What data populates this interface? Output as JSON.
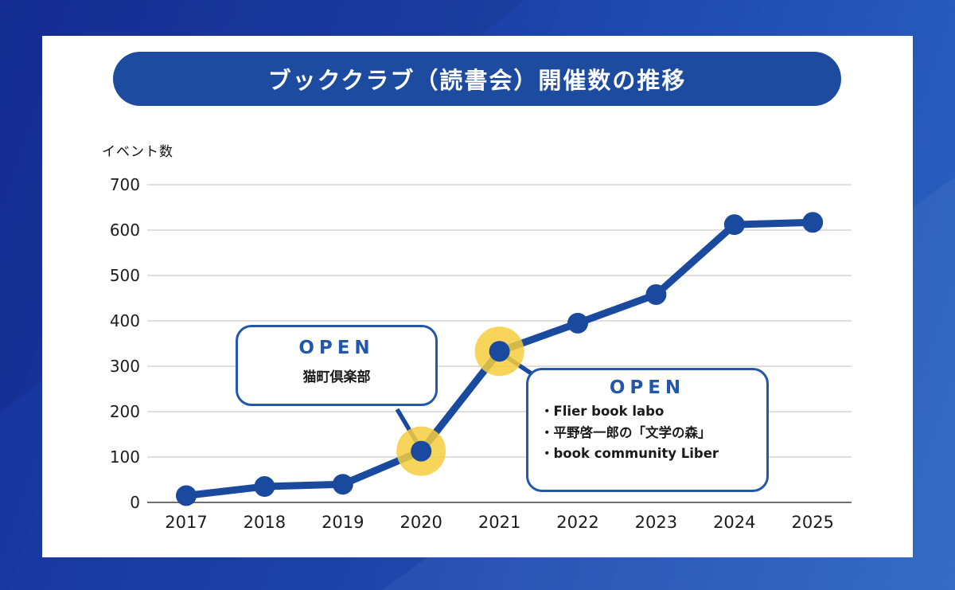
{
  "header": {
    "title": "ブッククラブ（読書会）開催数の推移"
  },
  "chart_data": {
    "type": "line",
    "title": "ブッククラブ（読書会）開催数の推移",
    "ylabel": "イベント数",
    "xlabel": "",
    "x": [
      2017,
      2018,
      2019,
      2020,
      2021,
      2022,
      2023,
      2024,
      2025
    ],
    "values": [
      15,
      35,
      40,
      113,
      333,
      395,
      458,
      612,
      617
    ],
    "ylim": [
      0,
      700
    ],
    "ytick_step": 100,
    "grid": true,
    "legend": "none",
    "highlighted_x": [
      2020,
      2021
    ],
    "line_color": "#1a4a9d",
    "highlight_color": "#f6ce3d"
  },
  "callouts": [
    {
      "heading": "OPEN",
      "body": "猫町倶楽部",
      "anchor_year": 2020
    },
    {
      "heading": "OPEN",
      "items": [
        "・Flier book labo",
        "・平野啓一郎の「文学の森」",
        "・book community Liber"
      ],
      "anchor_year": 2021
    }
  ],
  "colors": {
    "background_start": "#17309b",
    "background_end": "#2b64c2",
    "card": "#ffffff",
    "title_bar": "#1d4ba0",
    "title_text": "#ffffff",
    "callout_border": "#2257ab",
    "open_text": "#2257ab",
    "gridline": "#cccccc",
    "axis_line": "#6f6f6f",
    "tick_text": "#1c1c1c"
  }
}
